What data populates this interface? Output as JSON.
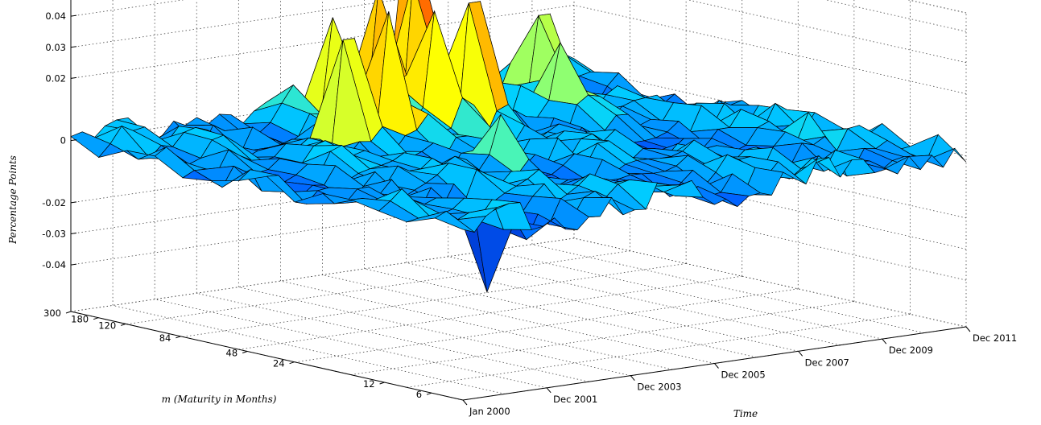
{
  "chart_data": {
    "type": "surface",
    "zlabel": "Percentage Points",
    "xlabel": "Time",
    "ylabel": "m (Maturity in Months)",
    "z_ticks": [
      "0.04",
      "0.03",
      "0.02",
      "0",
      "-0.02",
      "-0.03",
      "-0.04"
    ],
    "z_values": [
      0.04,
      0.03,
      0.02,
      0,
      -0.02,
      -0.03,
      -0.04
    ],
    "time_ticks": [
      "Jan 2000",
      "Dec 2001",
      "Dec 2003",
      "Dec 2005",
      "Dec 2007",
      "Dec 2009",
      "Dec 2011"
    ],
    "maturity_ticks": [
      "300",
      "180",
      "120",
      "84",
      "48",
      "24",
      "12",
      "6"
    ],
    "colormap": [
      "#00008f",
      "#0060ff",
      "#00d0ff",
      "#60ffa0",
      "#c0ff40",
      "#ffff00",
      "#ff3000"
    ],
    "grid": true,
    "spikes": [
      {
        "time": "Dec 2003",
        "maturity": 120,
        "value": 0.033
      },
      {
        "time": "Dec 2004",
        "maturity": 180,
        "value": 0.034
      },
      {
        "time": "Dec 2004",
        "maturity": 120,
        "value": 0.04
      },
      {
        "time": "Dec 2005",
        "maturity": 180,
        "value": 0.041
      },
      {
        "time": "Dec 2005",
        "maturity": 120,
        "value": 0.038
      },
      {
        "time": "Dec 2006",
        "maturity": 180,
        "value": 0.042
      },
      {
        "time": "Dec 2006",
        "maturity": 120,
        "value": 0.039
      },
      {
        "time": "Dec 2007",
        "maturity": 300,
        "value": 0.043
      },
      {
        "time": "Dec 2004",
        "maturity": 48,
        "value": 0.015
      },
      {
        "time": "Dec 2008",
        "maturity": 120,
        "value": 0.022
      },
      {
        "time": "Dec 2009",
        "maturity": 180,
        "value": 0.025
      },
      {
        "time": "Dec 2010",
        "maturity": 24,
        "value": 0.008
      },
      {
        "time": "Dec 2011",
        "maturity": 6,
        "value": -0.002
      },
      {
        "time": "Dec 2001",
        "maturity": 12,
        "value": -0.028
      }
    ]
  }
}
